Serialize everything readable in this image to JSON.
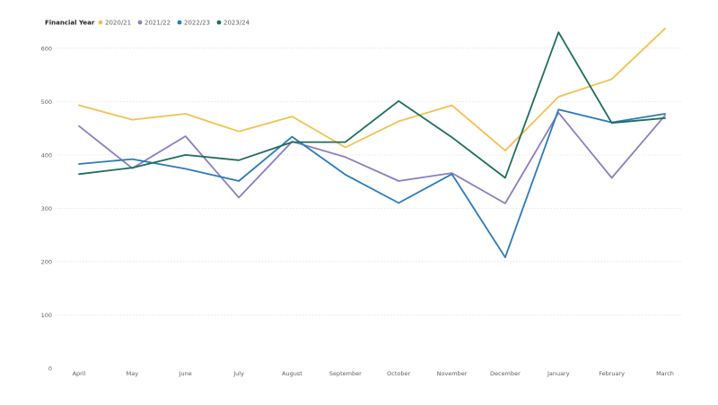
{
  "chart_data": {
    "type": "line",
    "legend_title": "Financial Year",
    "legend_position": "top-left",
    "categories": [
      "April",
      "May",
      "June",
      "July",
      "August",
      "September",
      "October",
      "November",
      "December",
      "January",
      "February",
      "March"
    ],
    "y_ticks": [
      0,
      100,
      200,
      300,
      400,
      500,
      600
    ],
    "ylim": [
      0,
      640
    ],
    "grid": true,
    "series": [
      {
        "name": "2020/21",
        "color": "#f2c14e",
        "values": [
          493,
          466,
          477,
          444,
          472,
          414,
          463,
          493,
          408,
          509,
          542,
          637
        ]
      },
      {
        "name": "2021/22",
        "color": "#8c7fc0",
        "values": [
          454,
          375,
          435,
          320,
          425,
          396,
          351,
          366,
          309,
          479,
          357,
          474
        ]
      },
      {
        "name": "2022/23",
        "color": "#2b7bb9",
        "values": [
          383,
          392,
          374,
          351,
          434,
          363,
          310,
          364,
          208,
          485,
          461,
          477
        ]
      },
      {
        "name": "2023/24",
        "color": "#1e6e5c",
        "values": [
          364,
          376,
          400,
          390,
          424,
          424,
          501,
          433,
          357,
          630,
          460,
          469
        ]
      }
    ]
  }
}
